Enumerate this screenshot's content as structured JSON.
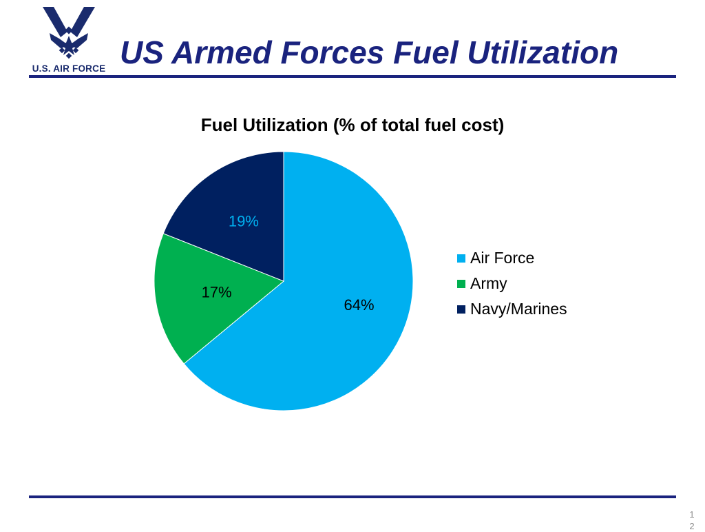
{
  "header": {
    "logo_text": "U.S. AIR FORCE",
    "title": "US Armed Forces Fuel Utilization"
  },
  "footer": {
    "page_number": "12"
  },
  "colors": {
    "air_force": "#00b0f0",
    "army": "#00b050",
    "navy_marines": "#002060",
    "accent": "#1a237e"
  },
  "chart_data": {
    "type": "pie",
    "title": "Fuel Utilization (% of total fuel cost)",
    "categories": [
      "Air Force",
      "Army",
      "Navy/Marines"
    ],
    "values": [
      64,
      17,
      19
    ],
    "data_labels": [
      "64%",
      "17%",
      "19%"
    ],
    "label_colors": [
      "#000000",
      "#000000",
      "#00b0f0"
    ],
    "legend_position": "right"
  }
}
